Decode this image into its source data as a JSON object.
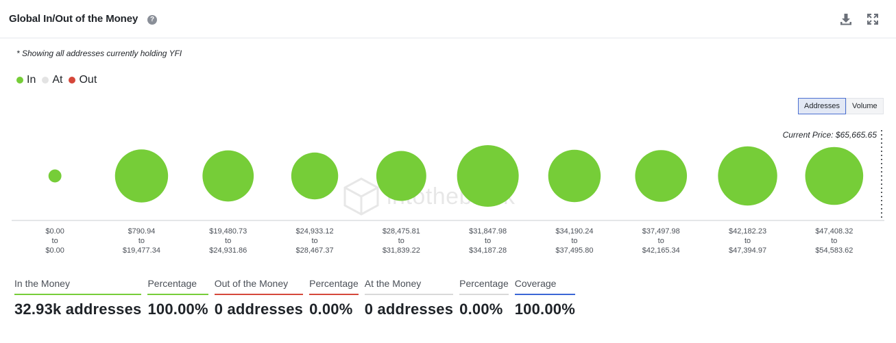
{
  "header": {
    "title": "Global In/Out of the Money",
    "help_icon": "question-circle-icon",
    "download_icon": "download-icon",
    "expand_icon": "expand-icon"
  },
  "note": "* Showing all addresses currently holding YFI",
  "legend": [
    {
      "label": "In",
      "color": "#76cd38"
    },
    {
      "label": "At",
      "color": "#e3e3e3"
    },
    {
      "label": "Out",
      "color": "#d5473a"
    }
  ],
  "toggle": {
    "options": [
      "Addresses",
      "Volume"
    ],
    "selected": "Addresses"
  },
  "current_price_label": "Current Price: $65,665.65",
  "watermark": "intotheblock",
  "chart_data": {
    "type": "bubble",
    "title": "Global In/Out of the Money",
    "current_price": 65665.65,
    "series_colors": {
      "In": "#76cd38",
      "At": "#e3e3e3",
      "Out": "#d5473a"
    },
    "categories": [
      {
        "from": "$0.00",
        "to": "$0.00",
        "relative_size": 0.21,
        "status": "In"
      },
      {
        "from": "$790.94",
        "to": "$19,477.34",
        "relative_size": 0.86,
        "status": "In"
      },
      {
        "from": "$19,480.73",
        "to": "$24,931.86",
        "relative_size": 0.83,
        "status": "In"
      },
      {
        "from": "$24,933.12",
        "to": "$28,467.37",
        "relative_size": 0.76,
        "status": "In"
      },
      {
        "from": "$28,475.81",
        "to": "$31,839.22",
        "relative_size": 0.81,
        "status": "In"
      },
      {
        "from": "$31,847.98",
        "to": "$34,187.28",
        "relative_size": 1.0,
        "status": "In"
      },
      {
        "from": "$34,190.24",
        "to": "$37,495.80",
        "relative_size": 0.85,
        "status": "In"
      },
      {
        "from": "$37,497.98",
        "to": "$42,165.34",
        "relative_size": 0.84,
        "status": "In"
      },
      {
        "from": "$42,182.23",
        "to": "$47,394.97",
        "relative_size": 0.96,
        "status": "In"
      },
      {
        "from": "$47,408.32",
        "to": "$54,583.62",
        "relative_size": 0.94,
        "status": "In"
      }
    ],
    "range_joiner": "to"
  },
  "stats": [
    {
      "label": "In the Money",
      "value": "32.93k addresses",
      "color": "#76cd38"
    },
    {
      "label": "Percentage",
      "value": "100.00%",
      "color": "#76cd38"
    },
    {
      "label": "Out of the Money",
      "value": "0 addresses",
      "color": "#d5473a"
    },
    {
      "label": "Percentage",
      "value": "0.00%",
      "color": "#d5473a"
    },
    {
      "label": "At the Money",
      "value": "0 addresses",
      "color": "#d9d9d9"
    },
    {
      "label": "Percentage",
      "value": "0.00%",
      "color": "#d9d9d9"
    },
    {
      "label": "Coverage",
      "value": "100.00%",
      "color": "#3a66d6"
    }
  ]
}
